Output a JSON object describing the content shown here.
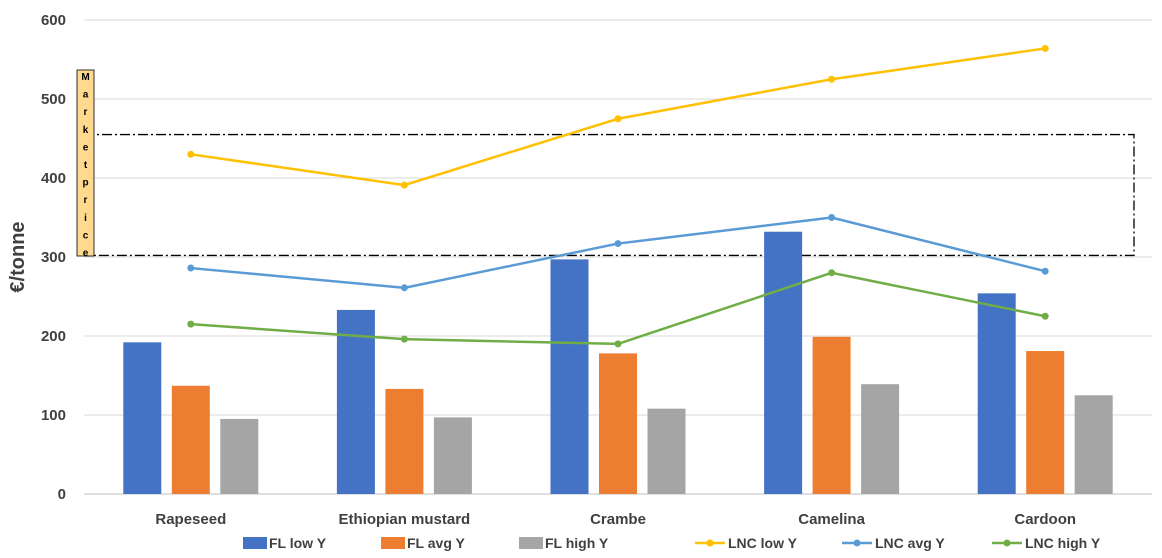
{
  "chart_data": {
    "type": "bar",
    "categories": [
      "Rapeseed",
      "Ethiopian mustard",
      "Crambe",
      "Camelina",
      "Cardoon"
    ],
    "ylabel": "€/tonne",
    "ylim": [
      0,
      600
    ],
    "yticks": [
      0,
      100,
      200,
      300,
      400,
      500,
      600
    ],
    "grid": true,
    "legend_position": "bottom",
    "series": [
      {
        "name": "FL low Y",
        "kind": "bar",
        "color": "#4472C4",
        "values": [
          192,
          233,
          297,
          332,
          254
        ]
      },
      {
        "name": "FL avg Y",
        "kind": "bar",
        "color": "#ED7D31",
        "values": [
          137,
          133,
          178,
          199,
          181
        ]
      },
      {
        "name": "FL high Y",
        "kind": "bar",
        "color": "#A5A5A5",
        "values": [
          95,
          97,
          108,
          139,
          125
        ]
      },
      {
        "name": "LNC low Y",
        "kind": "line",
        "color": "#FFC000",
        "values": [
          430,
          391,
          475,
          525,
          564
        ]
      },
      {
        "name": "LNC avg Y",
        "kind": "line",
        "color": "#5B9BD5",
        "values": [
          286,
          261,
          317,
          350,
          282
        ]
      },
      {
        "name": "LNC high Y",
        "kind": "line",
        "color": "#70AD47",
        "values": [
          215,
          196,
          190,
          280,
          225
        ]
      }
    ],
    "annotation": {
      "label": "Market price",
      "range": [
        302,
        455
      ],
      "box_fill": "#FFD98E"
    }
  }
}
